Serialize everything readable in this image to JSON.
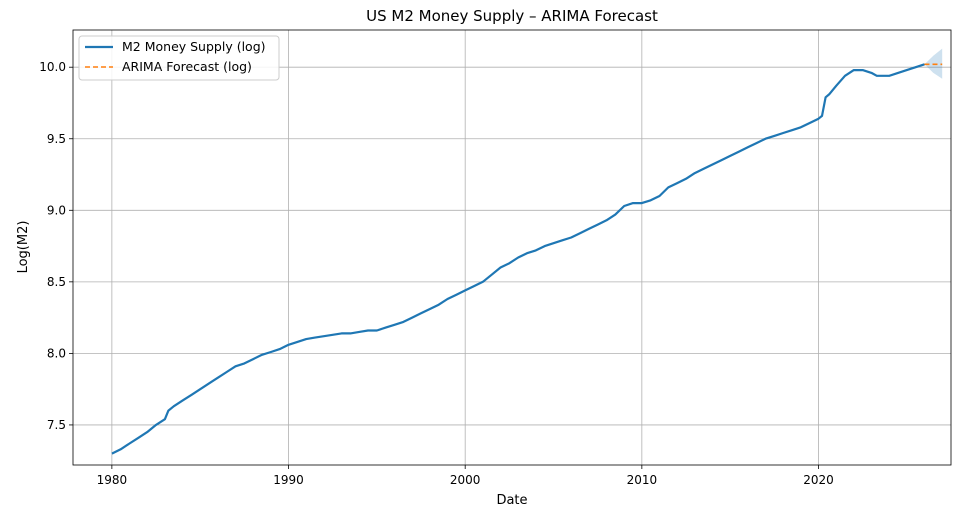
{
  "chart_data": {
    "type": "line",
    "title": "US M2 Money Supply – ARIMA Forecast",
    "xlabel": "Date",
    "ylabel": "Log(M2)",
    "xlim": [
      1977.8,
      2027.5
    ],
    "ylim": [
      7.22,
      10.26
    ],
    "x_ticks": [
      1980,
      1990,
      2000,
      2010,
      2020
    ],
    "x_tick_labels": [
      "1980",
      "1990",
      "2000",
      "2010",
      "2020"
    ],
    "y_ticks": [
      7.5,
      8.0,
      8.5,
      9.0,
      9.5,
      10.0
    ],
    "y_tick_labels": [
      "7.5",
      "8.0",
      "8.5",
      "9.0",
      "9.5",
      "10.0"
    ],
    "grid": true,
    "legend_position": "upper-left",
    "series": [
      {
        "name": "M2 Money Supply (log)",
        "color": "#1f77b4",
        "style": "solid",
        "x": [
          1980.0,
          1980.5,
          1981.0,
          1981.5,
          1982.0,
          1982.5,
          1983.0,
          1983.2,
          1983.5,
          1984.0,
          1984.5,
          1985.0,
          1985.5,
          1986.0,
          1986.5,
          1987.0,
          1987.5,
          1988.0,
          1988.5,
          1989.0,
          1989.5,
          1990.0,
          1990.5,
          1991.0,
          1991.5,
          1992.0,
          1992.5,
          1993.0,
          1993.5,
          1994.0,
          1994.5,
          1995.0,
          1995.5,
          1996.0,
          1996.5,
          1997.0,
          1997.5,
          1998.0,
          1998.5,
          1999.0,
          1999.5,
          2000.0,
          2000.5,
          2001.0,
          2001.5,
          2002.0,
          2002.5,
          2003.0,
          2003.5,
          2004.0,
          2004.5,
          2005.0,
          2005.5,
          2006.0,
          2006.5,
          2007.0,
          2007.5,
          2008.0,
          2008.5,
          2009.0,
          2009.5,
          2010.0,
          2010.5,
          2011.0,
          2011.5,
          2012.0,
          2012.5,
          2013.0,
          2013.5,
          2014.0,
          2014.5,
          2015.0,
          2015.5,
          2016.0,
          2016.5,
          2017.0,
          2017.5,
          2018.0,
          2018.5,
          2019.0,
          2019.5,
          2020.0,
          2020.2,
          2020.4,
          2020.6,
          2021.0,
          2021.5,
          2022.0,
          2022.5,
          2023.0,
          2023.3,
          2023.5,
          2024.0,
          2024.5,
          2025.0,
          2025.5,
          2026.0
        ],
        "values": [
          7.3,
          7.33,
          7.37,
          7.41,
          7.45,
          7.5,
          7.54,
          7.6,
          7.63,
          7.67,
          7.71,
          7.75,
          7.79,
          7.83,
          7.87,
          7.91,
          7.93,
          7.96,
          7.99,
          8.01,
          8.03,
          8.06,
          8.08,
          8.1,
          8.11,
          8.12,
          8.13,
          8.14,
          8.14,
          8.15,
          8.16,
          8.16,
          8.18,
          8.2,
          8.22,
          8.25,
          8.28,
          8.31,
          8.34,
          8.38,
          8.41,
          8.44,
          8.47,
          8.5,
          8.55,
          8.6,
          8.63,
          8.67,
          8.7,
          8.72,
          8.75,
          8.77,
          8.79,
          8.81,
          8.84,
          8.87,
          8.9,
          8.93,
          8.97,
          9.03,
          9.05,
          9.05,
          9.07,
          9.1,
          9.16,
          9.19,
          9.22,
          9.26,
          9.29,
          9.32,
          9.35,
          9.38,
          9.41,
          9.44,
          9.47,
          9.5,
          9.52,
          9.54,
          9.56,
          9.58,
          9.61,
          9.64,
          9.66,
          9.79,
          9.81,
          9.87,
          9.94,
          9.98,
          9.98,
          9.96,
          9.94,
          9.94,
          9.94,
          9.96,
          9.98,
          10.0,
          10.02
        ]
      },
      {
        "name": "ARIMA Forecast (log)",
        "color": "#ff7f0e",
        "style": "dashed",
        "x": [
          2026.0,
          2026.5,
          2027.0
        ],
        "values": [
          10.02,
          10.02,
          10.02
        ],
        "upper": [
          10.02,
          10.08,
          10.13
        ],
        "lower": [
          10.02,
          9.96,
          9.92
        ]
      }
    ]
  }
}
